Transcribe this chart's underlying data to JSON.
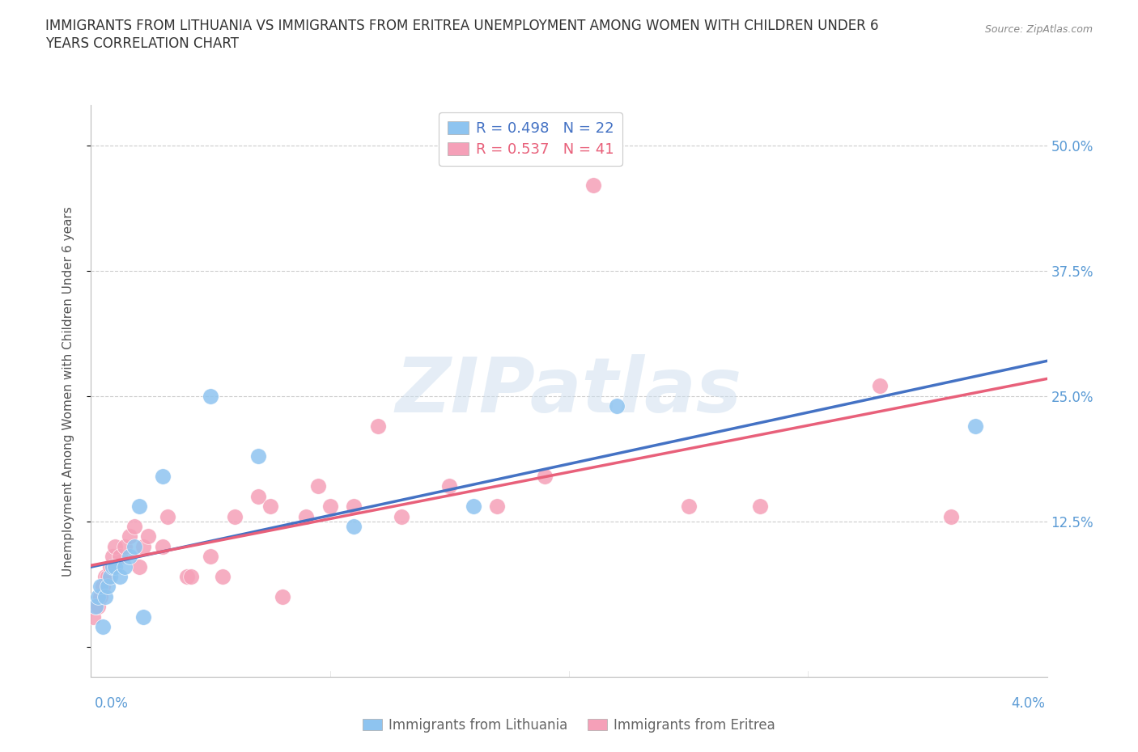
{
  "title_line1": "IMMIGRANTS FROM LITHUANIA VS IMMIGRANTS FROM ERITREA UNEMPLOYMENT AMONG WOMEN WITH CHILDREN UNDER 6",
  "title_line2": "YEARS CORRELATION CHART",
  "source": "Source: ZipAtlas.com",
  "ylabel": "Unemployment Among Women with Children Under 6 years",
  "yticks": [
    0.0,
    0.125,
    0.25,
    0.375,
    0.5
  ],
  "ytick_labels": [
    "",
    "12.5%",
    "25.0%",
    "37.5%",
    "50.0%"
  ],
  "xlim": [
    0.0,
    0.04
  ],
  "ylim": [
    -0.03,
    0.54
  ],
  "R_lithuania": 0.498,
  "N_lithuania": 22,
  "R_eritrea": 0.537,
  "N_eritrea": 41,
  "color_lithuania": "#8EC4F0",
  "color_eritrea": "#F5A0B8",
  "color_lithuania_line": "#4472C4",
  "color_eritrea_line": "#E8607A",
  "watermark": "ZIPatlas",
  "lithuania_x": [
    0.0002,
    0.0003,
    0.0004,
    0.0005,
    0.0006,
    0.0007,
    0.0008,
    0.0009,
    0.001,
    0.0012,
    0.0014,
    0.0016,
    0.0018,
    0.002,
    0.0022,
    0.003,
    0.005,
    0.007,
    0.011,
    0.016,
    0.022,
    0.037
  ],
  "lithuania_y": [
    0.04,
    0.05,
    0.06,
    0.02,
    0.05,
    0.06,
    0.07,
    0.08,
    0.08,
    0.07,
    0.08,
    0.09,
    0.1,
    0.14,
    0.03,
    0.17,
    0.25,
    0.19,
    0.12,
    0.14,
    0.24,
    0.22
  ],
  "eritrea_x": [
    0.0001,
    0.0002,
    0.0003,
    0.0004,
    0.0005,
    0.0006,
    0.0007,
    0.0008,
    0.0009,
    0.001,
    0.0012,
    0.0014,
    0.0016,
    0.0018,
    0.002,
    0.0022,
    0.0024,
    0.003,
    0.0032,
    0.004,
    0.0042,
    0.005,
    0.0055,
    0.006,
    0.007,
    0.0075,
    0.008,
    0.009,
    0.0095,
    0.01,
    0.011,
    0.012,
    0.013,
    0.015,
    0.017,
    0.019,
    0.021,
    0.025,
    0.028,
    0.033,
    0.036
  ],
  "eritrea_y": [
    0.03,
    0.04,
    0.04,
    0.05,
    0.06,
    0.07,
    0.07,
    0.08,
    0.09,
    0.1,
    0.09,
    0.1,
    0.11,
    0.12,
    0.08,
    0.1,
    0.11,
    0.1,
    0.13,
    0.07,
    0.07,
    0.09,
    0.07,
    0.13,
    0.15,
    0.14,
    0.05,
    0.13,
    0.16,
    0.14,
    0.14,
    0.22,
    0.13,
    0.16,
    0.14,
    0.17,
    0.46,
    0.14,
    0.14,
    0.26,
    0.13
  ]
}
